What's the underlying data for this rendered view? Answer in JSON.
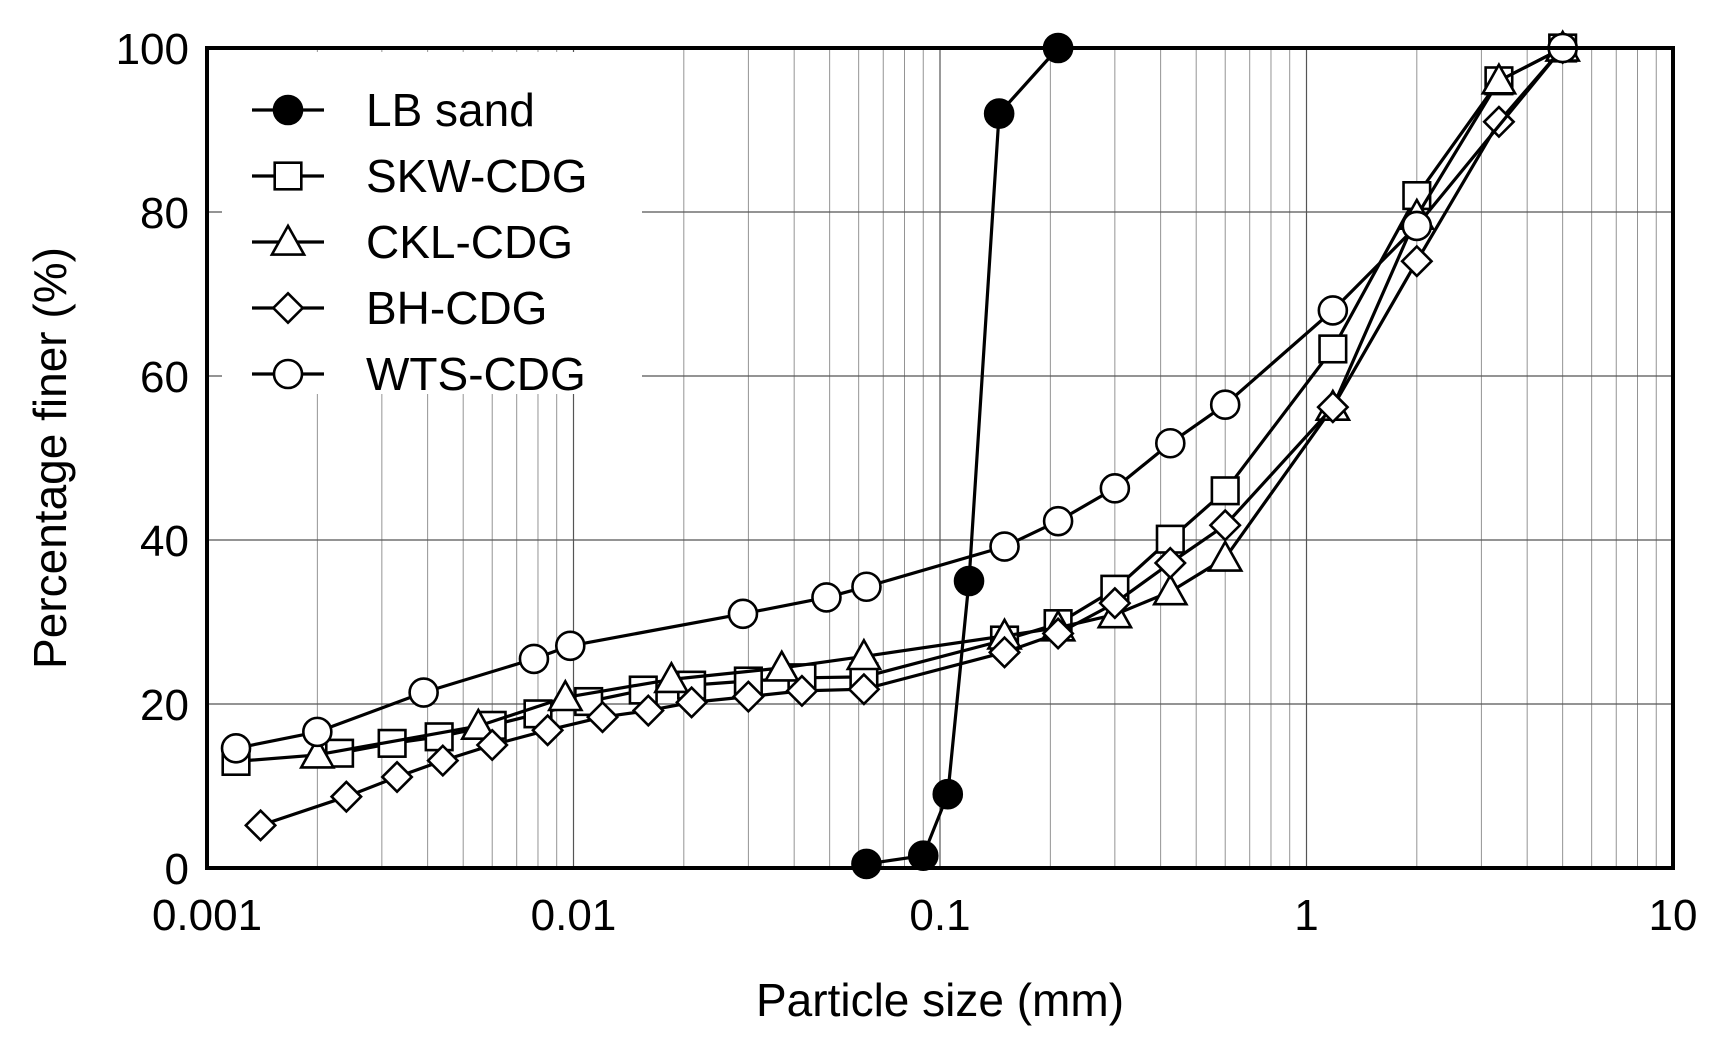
{
  "chart_data": {
    "type": "line",
    "title": "",
    "xlabel": "Particle size (mm)",
    "ylabel": "Percentage finer (%)",
    "xscale": "log",
    "xlim": [
      0.001,
      10
    ],
    "ylim": [
      0,
      100
    ],
    "x_ticks": [
      {
        "value": 0.001,
        "label": "0.001"
      },
      {
        "value": 0.01,
        "label": "0.01"
      },
      {
        "value": 0.1,
        "label": "0.1"
      },
      {
        "value": 1,
        "label": "1"
      },
      {
        "value": 10,
        "label": "10"
      }
    ],
    "y_ticks": [
      {
        "value": 0,
        "label": "0"
      },
      {
        "value": 20,
        "label": "20"
      },
      {
        "value": 40,
        "label": "40"
      },
      {
        "value": 60,
        "label": "60"
      },
      {
        "value": 80,
        "label": "80"
      },
      {
        "value": 100,
        "label": "100"
      }
    ],
    "grid": true,
    "legend_position": "top-left",
    "series": [
      {
        "name": "LB sand",
        "marker": "filled-circle",
        "x": [
          0.063,
          0.09,
          0.105,
          0.12,
          0.145,
          0.21
        ],
        "y": [
          0.5,
          1.5,
          9,
          35,
          92,
          100
        ]
      },
      {
        "name": "SKW-CDG",
        "marker": "open-square",
        "x": [
          0.0012,
          0.0023,
          0.0032,
          0.0043,
          0.006,
          0.008,
          0.011,
          0.0155,
          0.021,
          0.03,
          0.042,
          0.062,
          0.15,
          0.21,
          0.3,
          0.425,
          0.6,
          1.18,
          2,
          3.35,
          5
        ],
        "y": [
          13,
          14,
          15.2,
          16,
          17.4,
          18.8,
          20.3,
          21.7,
          22.3,
          22.8,
          23.2,
          23.3,
          27.8,
          29.8,
          34,
          40.1,
          46,
          63.3,
          82,
          96,
          100
        ]
      },
      {
        "name": "CKL-CDG",
        "marker": "open-triangle",
        "x": [
          0.002,
          0.0055,
          0.0095,
          0.0185,
          0.037,
          0.062,
          0.15,
          0.21,
          0.3,
          0.425,
          0.6,
          1.18,
          2,
          3.35,
          5
        ],
        "y": [
          13.8,
          17.3,
          20.8,
          23,
          24.4,
          25.8,
          28.3,
          29.3,
          30.9,
          33.7,
          37.8,
          56.2,
          79.5,
          96,
          100
        ]
      },
      {
        "name": "BH-CDG",
        "marker": "open-diamond",
        "x": [
          0.0014,
          0.0024,
          0.0033,
          0.0044,
          0.006,
          0.0085,
          0.012,
          0.016,
          0.021,
          0.03,
          0.042,
          0.062,
          0.15,
          0.21,
          0.3,
          0.425,
          0.6,
          1.18,
          2,
          3.35,
          5
        ],
        "y": [
          5.2,
          8.7,
          11.1,
          13.1,
          15,
          16.8,
          18.4,
          19.2,
          20.2,
          20.9,
          21.6,
          21.8,
          26.3,
          28.6,
          32.3,
          37.2,
          41.8,
          56.2,
          74,
          91,
          100
        ]
      },
      {
        "name": "WTS-CDG",
        "marker": "open-circle",
        "x": [
          0.0012,
          0.002,
          0.0039,
          0.0078,
          0.0098,
          0.029,
          0.049,
          0.063,
          0.15,
          0.21,
          0.3,
          0.425,
          0.6,
          1.18,
          2,
          5
        ],
        "y": [
          14.6,
          16.6,
          21.4,
          25.5,
          27.1,
          31,
          33,
          34.3,
          39.2,
          42.3,
          46.3,
          51.8,
          56.5,
          68,
          78.3,
          100
        ]
      }
    ]
  }
}
